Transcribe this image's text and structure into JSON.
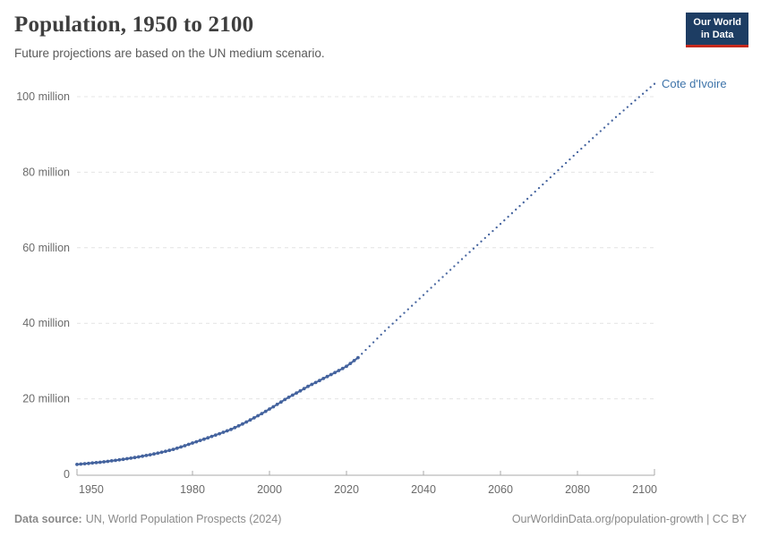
{
  "header": {
    "title": "Population, 1950 to 2100",
    "subtitle": "Future projections are based on the UN medium scenario.",
    "logo": {
      "line1": "Our World",
      "line2": "in Data"
    }
  },
  "chart_data": {
    "type": "line",
    "title": "Population, 1950 to 2100",
    "entity": "Cote d'Ivoire",
    "xlabel": "",
    "ylabel": "",
    "xlim": [
      1950,
      2100
    ],
    "ylim": [
      0,
      100
    ],
    "unit": "million",
    "grid": "horizontal-dashed",
    "x_ticks": [
      1950,
      1980,
      2000,
      2020,
      2040,
      2060,
      2080,
      2100
    ],
    "y_ticks": [
      {
        "value": 0,
        "label": "0"
      },
      {
        "value": 20,
        "label": "20 million"
      },
      {
        "value": 40,
        "label": "40 million"
      },
      {
        "value": 60,
        "label": "60 million"
      },
      {
        "value": 80,
        "label": "80 million"
      },
      {
        "value": 100,
        "label": "100 million"
      }
    ],
    "series": [
      {
        "name": "Cote d'Ivoire (estimates)",
        "style": "solid",
        "years_start": 1950,
        "values_million": [
          2.63,
          2.72,
          2.81,
          2.9,
          3.0,
          3.1,
          3.21,
          3.32,
          3.44,
          3.57,
          3.7,
          3.84,
          3.99,
          4.14,
          4.3,
          4.46,
          4.63,
          4.81,
          5.0,
          5.19,
          5.4,
          5.62,
          5.85,
          6.09,
          6.34,
          6.6,
          6.91,
          7.24,
          7.58,
          7.93,
          8.3,
          8.63,
          8.97,
          9.32,
          9.68,
          10.05,
          10.41,
          10.77,
          11.14,
          11.52,
          11.9,
          12.37,
          12.85,
          13.35,
          13.87,
          14.4,
          14.95,
          15.51,
          16.09,
          16.69,
          17.3,
          17.9,
          18.52,
          19.15,
          19.8,
          20.4,
          20.97,
          21.54,
          22.12,
          22.71,
          23.3,
          23.81,
          24.32,
          24.84,
          25.37,
          25.9,
          26.42,
          26.95,
          27.49,
          28.04,
          28.6,
          29.35,
          30.12,
          30.9
        ]
      },
      {
        "name": "Cote d'Ivoire (UN medium projection)",
        "style": "dotted",
        "anchor_points": [
          [
            2023,
            30.9
          ],
          [
            2030,
            38.0
          ],
          [
            2040,
            47.5
          ],
          [
            2050,
            57.0
          ],
          [
            2060,
            66.3
          ],
          [
            2070,
            75.8
          ],
          [
            2080,
            85.3
          ],
          [
            2090,
            94.6
          ],
          [
            2100,
            103.4
          ]
        ]
      }
    ]
  },
  "footer": {
    "source_label": "Data source:",
    "source": "UN, World Population Prospects (2024)",
    "link": "OurWorldinData.org/population-growth | CC BY"
  },
  "colors": {
    "accent_navy": "#1d3d63",
    "accent_red": "#c5281c",
    "line": "#44639e",
    "entity_label": "#3d73a9",
    "grid": "#e4e4e4",
    "axis": "#a8a8a8",
    "muted_text": "#6b6b6b",
    "footer_text": "#8a8a8a"
  }
}
